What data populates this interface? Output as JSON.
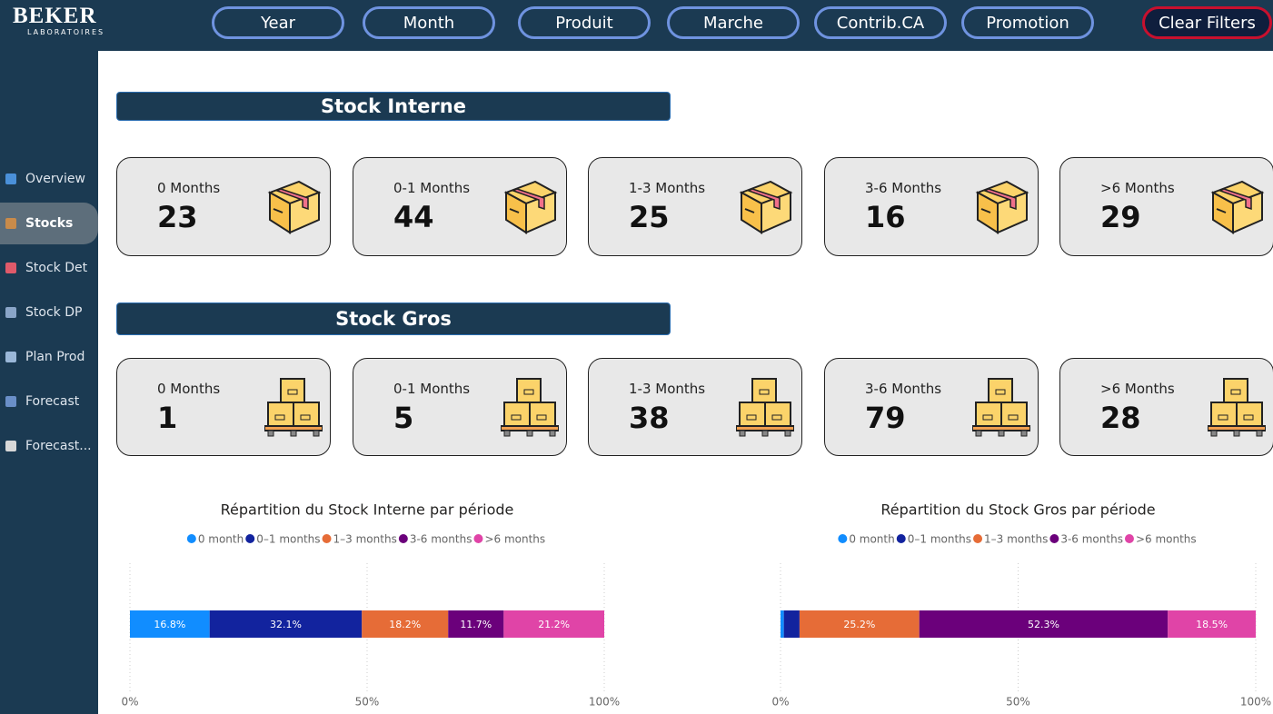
{
  "header": {
    "logo": "BEKER",
    "logo_sub": "LABORATOIRES",
    "filters": [
      "Year",
      "Month",
      "Produit",
      "Marche",
      "Contrib.CA",
      "Promotion"
    ],
    "clear_filters": "Clear Filters"
  },
  "sidebar": {
    "items": [
      "Overview",
      "Stocks",
      "Stock Det",
      "Stock DP",
      "Plan Prod",
      "Forecast",
      "Forecast..."
    ],
    "active": "Stocks"
  },
  "sections": [
    {
      "title": "Stock Interne",
      "cards": [
        {
          "label": "0 Months",
          "value": 23
        },
        {
          "label": "0-1 Months",
          "value": 44
        },
        {
          "label": "1-3 Months",
          "value": 25
        },
        {
          "label": "3-6 Months",
          "value": 16
        },
        {
          "label": ">6 Months",
          "value": 29
        }
      ]
    },
    {
      "title": "Stock Gros",
      "cards": [
        {
          "label": "0 Months",
          "value": 1
        },
        {
          "label": "0-1 Months",
          "value": 5
        },
        {
          "label": "1-3 Months",
          "value": 38
        },
        {
          "label": "3-6 Months",
          "value": 79
        },
        {
          "label": ">6 Months",
          "value": 28
        }
      ]
    }
  ],
  "chart_data": [
    {
      "type": "bar",
      "orientation": "horizontal",
      "stacked": true,
      "title": "Répartition du Stock Interne par période",
      "categories": [
        null
      ],
      "series": [
        {
          "name": "0 month",
          "color": "#118dff",
          "values": [
            16.8
          ],
          "value_labels": [
            "16.8%"
          ]
        },
        {
          "name": "0–1 months",
          "color": "#12239e",
          "values": [
            32.1
          ],
          "value_labels": [
            "32.1%"
          ]
        },
        {
          "name": "1–3 months",
          "color": "#e66c37",
          "values": [
            18.2
          ],
          "value_labels": [
            "18.2%"
          ]
        },
        {
          "name": "3-6 months",
          "color": "#6b007b",
          "values": [
            11.7
          ],
          "value_labels": [
            "11.7%"
          ]
        },
        {
          "name": ">6 months",
          "color": "#e044a7",
          "values": [
            21.2
          ],
          "value_labels": [
            "21.2%"
          ]
        }
      ],
      "xlim": [
        0,
        100
      ],
      "xticks": [
        {
          "value": 0,
          "label": "0%"
        },
        {
          "value": 50,
          "label": "50%"
        },
        {
          "value": 100,
          "label": "100%"
        }
      ],
      "grid": true
    },
    {
      "type": "bar",
      "orientation": "horizontal",
      "stacked": true,
      "title": "Répartition du Stock Gros par période",
      "categories": [
        null
      ],
      "series": [
        {
          "name": "0 month",
          "color": "#118dff",
          "values": [
            0.7
          ],
          "value_labels": [
            null
          ]
        },
        {
          "name": "0–1 months",
          "color": "#12239e",
          "values": [
            3.3
          ],
          "value_labels": [
            null
          ]
        },
        {
          "name": "1–3 months",
          "color": "#e66c37",
          "values": [
            25.2
          ],
          "value_labels": [
            "25.2%"
          ]
        },
        {
          "name": "3-6 months",
          "color": "#6b007b",
          "values": [
            52.3
          ],
          "value_labels": [
            "52.3%"
          ]
        },
        {
          "name": ">6 months",
          "color": "#e044a7",
          "values": [
            18.5
          ],
          "value_labels": [
            "18.5%"
          ]
        }
      ],
      "xlim": [
        0,
        100
      ],
      "xticks": [
        {
          "value": 0,
          "label": "0%"
        },
        {
          "value": 50,
          "label": "50%"
        },
        {
          "value": 100,
          "label": "100%"
        }
      ],
      "grid": true
    }
  ]
}
